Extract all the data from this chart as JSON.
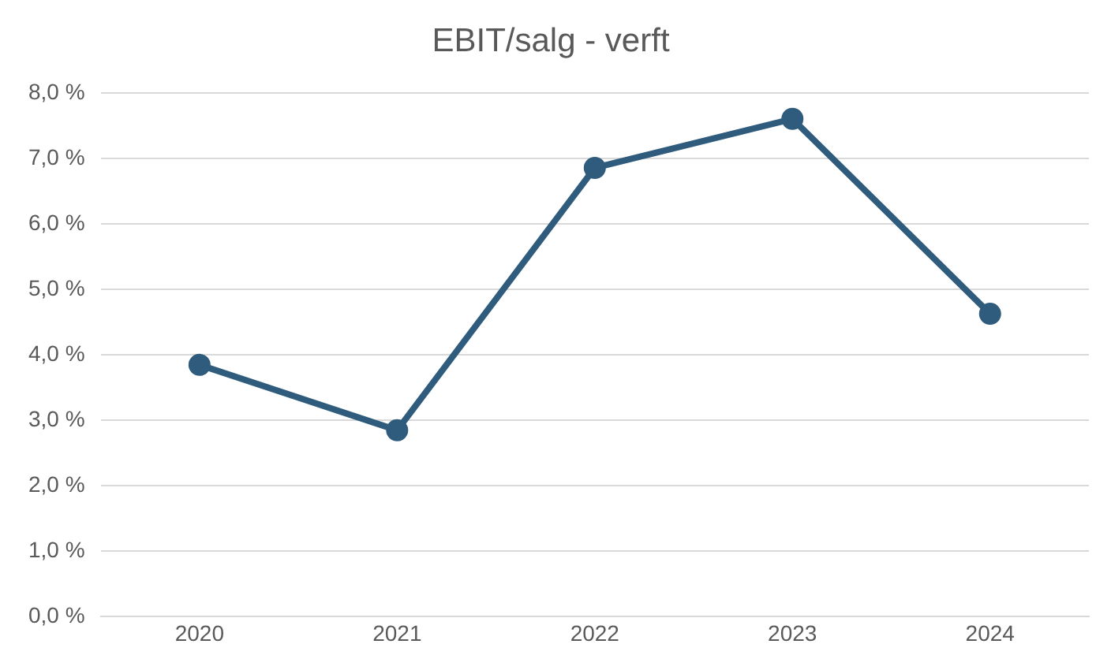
{
  "chart_data": {
    "type": "line",
    "title": "EBIT/salg - verft",
    "categories": [
      "2020",
      "2021",
      "2022",
      "2023",
      "2024"
    ],
    "series": [
      {
        "color": "#2f5b7c",
        "values": [
          3.85,
          2.85,
          6.86,
          7.61,
          4.63
        ]
      }
    ],
    "ylim": [
      0,
      8
    ],
    "yticks": [
      {
        "value": 0,
        "label": "0,0 %"
      },
      {
        "value": 1,
        "label": "1,0 %"
      },
      {
        "value": 2,
        "label": "2,0 %"
      },
      {
        "value": 3,
        "label": "3,0 %"
      },
      {
        "value": 4,
        "label": "4,0 %"
      },
      {
        "value": 5,
        "label": "5,0 %"
      },
      {
        "value": 6,
        "label": "6,0 %"
      },
      {
        "value": 7,
        "label": "7,0 %"
      },
      {
        "value": 8,
        "label": "8,0 %"
      }
    ],
    "grid": "y",
    "legend": false,
    "marker": "circle",
    "line_style": "solid"
  }
}
